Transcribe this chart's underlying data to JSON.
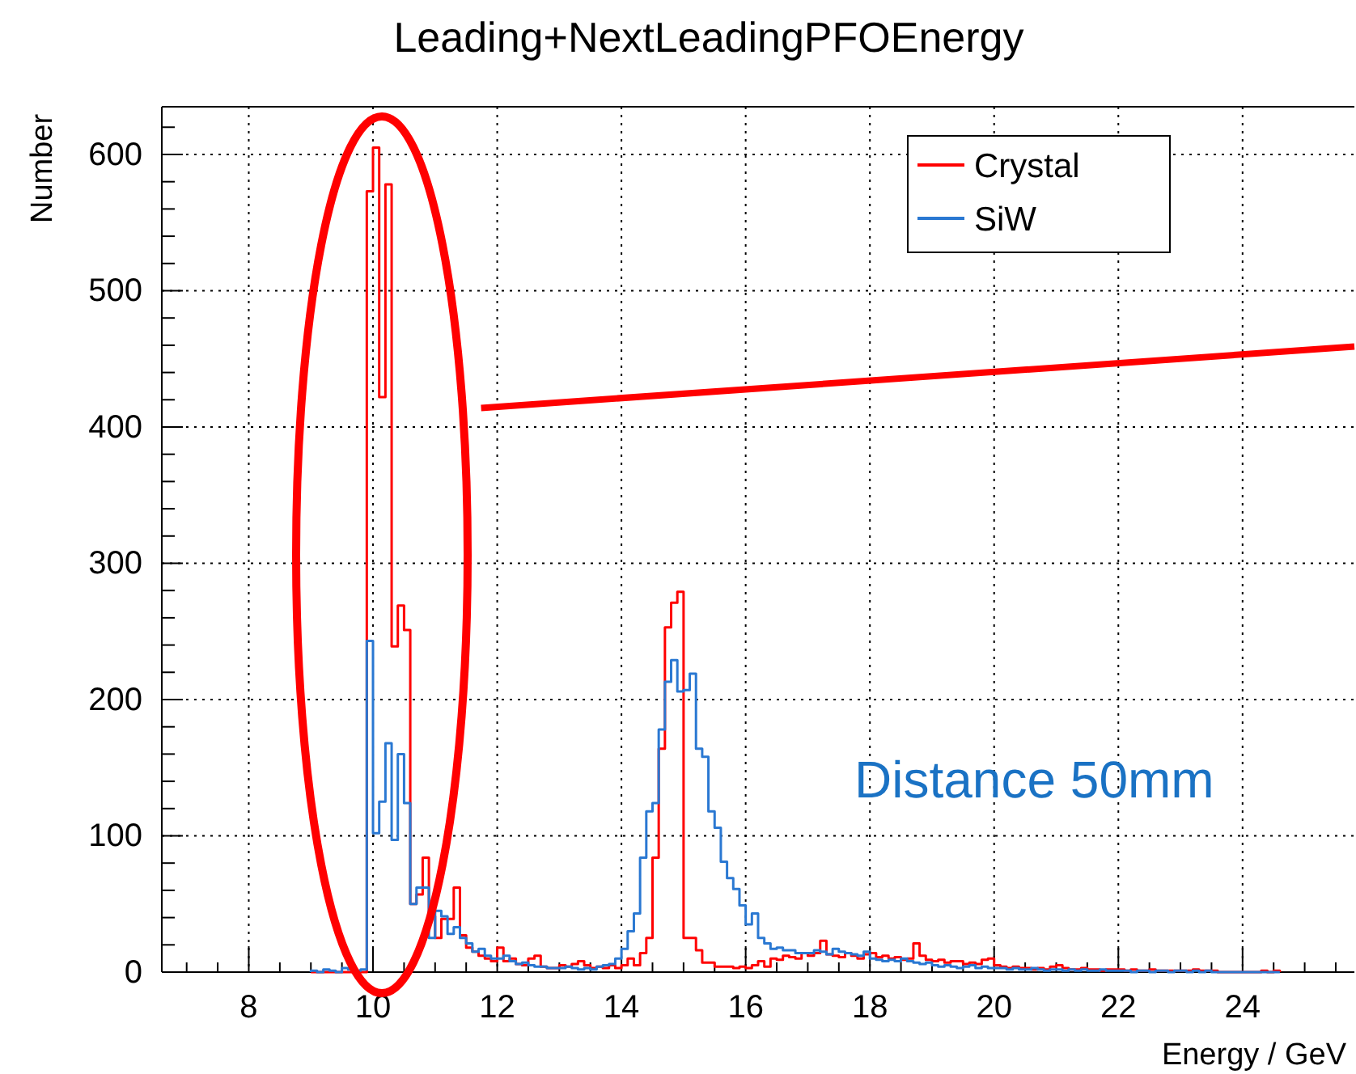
{
  "chart_data": {
    "type": "histogram",
    "title": "Leading+NextLeadingPFOEnergy",
    "xlabel": "Energy / GeV",
    "ylabel": "Number",
    "xlim": [
      6.6,
      25.8
    ],
    "ylim": [
      0,
      635
    ],
    "xticks": [
      {
        "value": 7,
        "label": null
      },
      {
        "value": 7.5,
        "label": null
      },
      8,
      {
        "value": 8.5,
        "label": null
      },
      {
        "value": 9,
        "label": null
      },
      {
        "value": 9.5,
        "label": null
      },
      10,
      {
        "value": 10.5,
        "label": null
      },
      {
        "value": 11,
        "label": null
      },
      {
        "value": 11.5,
        "label": null
      },
      12,
      {
        "value": 12.5,
        "label": null
      },
      {
        "value": 13,
        "label": null
      },
      {
        "value": 13.5,
        "label": null
      },
      14,
      {
        "value": 14.5,
        "label": null
      },
      {
        "value": 15,
        "label": null
      },
      {
        "value": 15.5,
        "label": null
      },
      16,
      {
        "value": 16.5,
        "label": null
      },
      {
        "value": 17,
        "label": null
      },
      {
        "value": 17.5,
        "label": null
      },
      18,
      {
        "value": 18.5,
        "label": null
      },
      {
        "value": 19,
        "label": null
      },
      {
        "value": 19.5,
        "label": null
      },
      20,
      {
        "value": 20.5,
        "label": null
      },
      {
        "value": 21,
        "label": null
      },
      {
        "value": 21.5,
        "label": null
      },
      22,
      {
        "value": 22.5,
        "label": null
      },
      {
        "value": 23,
        "label": null
      },
      {
        "value": 23.5,
        "label": null
      },
      24,
      {
        "value": 24.5,
        "label": null
      },
      {
        "value": 25,
        "label": null
      },
      {
        "value": 25.5,
        "label": null
      }
    ],
    "yticks": [
      0,
      {
        "value": 20,
        "label": null
      },
      {
        "value": 40,
        "label": null
      },
      {
        "value": 60,
        "label": null
      },
      {
        "value": 80,
        "label": null
      },
      100,
      {
        "value": 120,
        "label": null
      },
      {
        "value": 140,
        "label": null
      },
      {
        "value": 160,
        "label": null
      },
      {
        "value": 180,
        "label": null
      },
      200,
      {
        "value": 220,
        "label": null
      },
      {
        "value": 240,
        "label": null
      },
      {
        "value": 260,
        "label": null
      },
      {
        "value": 280,
        "label": null
      },
      300,
      {
        "value": 320,
        "label": null
      },
      {
        "value": 340,
        "label": null
      },
      {
        "value": 360,
        "label": null
      },
      {
        "value": 380,
        "label": null
      },
      400,
      {
        "value": 420,
        "label": null
      },
      {
        "value": 440,
        "label": null
      },
      {
        "value": 460,
        "label": null
      },
      {
        "value": 480,
        "label": null
      },
      500,
      {
        "value": 520,
        "label": null
      },
      {
        "value": 540,
        "label": null
      },
      {
        "value": 560,
        "label": null
      },
      {
        "value": 580,
        "label": null
      },
      600,
      {
        "value": 620,
        "label": null
      }
    ],
    "grid": true,
    "legend": "top right",
    "annotations": [
      "Distance 50mm"
    ],
    "bins": [
      9.0,
      9.1,
      9.2,
      9.3,
      9.4,
      9.5,
      9.6,
      9.7,
      9.8,
      9.9,
      10.0,
      10.1,
      10.2,
      10.3,
      10.4,
      10.5,
      10.6,
      10.7,
      10.8,
      10.9,
      11.0,
      11.1,
      11.2,
      11.3,
      11.4,
      11.5,
      11.6,
      11.7,
      11.8,
      11.9,
      12.0,
      12.1,
      12.2,
      12.3,
      12.4,
      12.5,
      12.6,
      12.7,
      12.8,
      12.9,
      13.0,
      13.1,
      13.2,
      13.3,
      13.4,
      13.5,
      13.6,
      13.7,
      13.8,
      13.9,
      14.0,
      14.1,
      14.2,
      14.3,
      14.4,
      14.5,
      14.6,
      14.7,
      14.8,
      14.9,
      15.0,
      15.1,
      15.2,
      15.3,
      15.4,
      15.5,
      15.6,
      15.7,
      15.8,
      15.9,
      16.0,
      16.1,
      16.2,
      16.3,
      16.4,
      16.5,
      16.6,
      16.7,
      16.8,
      16.9,
      17.0,
      17.1,
      17.2,
      17.3,
      17.4,
      17.5,
      17.6,
      17.7,
      17.8,
      17.9,
      18.0,
      18.1,
      18.2,
      18.3,
      18.4,
      18.5,
      18.6,
      18.7,
      18.8,
      18.9,
      19.0,
      19.1,
      19.2,
      19.3,
      19.4,
      19.5,
      19.6,
      19.7,
      19.8,
      19.9,
      20.0,
      20.1,
      20.2,
      20.3,
      20.4,
      20.5,
      20.6,
      20.7,
      20.8,
      20.9,
      21.0,
      21.1,
      21.2,
      21.3,
      21.4,
      21.5,
      21.6,
      21.7,
      21.8,
      21.9,
      22.0,
      22.1,
      22.2,
      22.3,
      22.4,
      22.5,
      22.6,
      22.7,
      22.8,
      22.9,
      23.0,
      23.1,
      23.2,
      23.3,
      23.4,
      23.5,
      23.6,
      23.7,
      23.8,
      23.9,
      24.0,
      24.1,
      24.2,
      24.3,
      24.4,
      24.5,
      24.6
    ],
    "series": [
      {
        "name": "Crystal",
        "color": "#ff0000",
        "values": [
          0,
          0,
          0,
          0,
          0,
          0,
          0,
          0,
          0,
          573,
          605,
          422,
          578,
          239,
          269,
          251,
          50,
          57,
          84,
          41,
          25,
          39,
          39,
          62,
          27,
          18,
          15,
          12,
          10,
          8,
          18,
          8,
          10,
          6,
          5,
          10,
          12,
          4,
          3,
          3,
          5,
          4,
          6,
          8,
          5,
          3,
          4,
          3,
          5,
          3,
          5,
          10,
          5,
          14,
          25,
          84,
          164,
          253,
          271,
          279,
          25,
          25,
          16,
          7,
          7,
          4,
          4,
          4,
          3,
          4,
          3,
          5,
          8,
          4,
          10,
          9,
          12,
          11,
          10,
          14,
          12,
          14,
          23,
          13,
          12,
          11,
          14,
          12,
          10,
          13,
          14,
          11,
          12,
          10,
          11,
          9,
          10,
          21,
          12,
          9,
          8,
          9,
          7,
          8,
          8,
          6,
          7,
          6,
          9,
          10,
          5,
          4,
          3,
          4,
          3,
          3,
          2,
          3,
          2,
          4,
          5,
          3,
          2,
          2,
          3,
          2,
          2,
          1,
          2,
          2,
          2,
          1,
          2,
          1,
          1,
          2,
          1,
          1,
          1,
          1,
          1,
          1,
          2,
          1,
          1,
          1,
          0,
          0,
          0,
          0,
          0,
          0,
          0,
          1,
          0,
          1
        ]
      },
      {
        "type": "line",
        "color": "#ff0000",
        "x": [
          11.74,
          25.8
        ],
        "values": [
          414,
          459
        ]
      },
      {
        "name": "SiW",
        "color": "#2a78d2",
        "values": [
          1,
          0,
          2,
          1,
          0,
          3,
          2,
          1,
          2,
          243,
          102,
          125,
          168,
          97,
          160,
          124,
          50,
          62,
          62,
          25,
          45,
          41,
          28,
          33,
          25,
          21,
          15,
          17,
          12,
          10,
          10,
          12,
          8,
          6,
          7,
          5,
          4,
          4,
          3,
          3,
          3,
          4,
          3,
          2,
          3,
          2,
          4,
          5,
          6,
          10,
          17,
          30,
          43,
          84,
          118,
          124,
          178,
          213,
          229,
          206,
          207,
          219,
          164,
          158,
          118,
          106,
          81,
          69,
          61,
          49,
          35,
          43,
          25,
          21,
          17,
          18,
          16,
          16,
          14,
          14,
          14,
          16,
          15,
          13,
          17,
          15,
          14,
          13,
          12,
          15,
          10,
          9,
          8,
          9,
          8,
          10,
          8,
          7,
          6,
          7,
          5,
          4,
          5,
          4,
          3,
          4,
          5,
          3,
          4,
          3,
          3,
          3,
          2,
          3,
          2,
          2,
          3,
          2,
          1,
          2,
          2,
          1,
          2,
          1,
          2,
          1,
          1,
          2,
          1,
          1,
          1,
          1,
          0,
          1,
          1,
          0,
          1,
          1,
          0,
          1,
          1,
          0,
          1,
          0,
          1,
          0,
          0,
          0,
          0,
          0,
          0,
          0,
          0,
          0,
          0,
          0
        ]
      }
    ]
  }
}
